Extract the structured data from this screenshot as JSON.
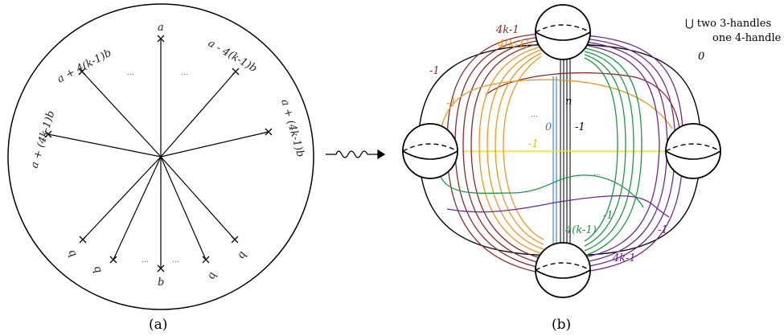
{
  "panel_a": {
    "caption": "(a)",
    "labels": {
      "top": "a",
      "upper_left": "a + 4(k-1)b",
      "upper_right": "a - 4(k-1)b",
      "left": "a + (4k-1)b",
      "right": "a + (4k-1)b",
      "bottom": "b",
      "b1": "b",
      "b2": "b",
      "b3": "b",
      "b4": "b",
      "dots": "..."
    }
  },
  "arrow": {
    "symbol": "squiggle-arrow"
  },
  "panel_b": {
    "caption": "(b)",
    "handles_note_line1": "⋃ two 3-handles",
    "handles_note_line2": "one 4-handle",
    "labels": {
      "zero_top": "0",
      "four_k_minus_1_brown": "4k-1",
      "four_k_minus_1_orange": "4(k-1)",
      "minus1_brown": "-1",
      "minus1_orange": "-1",
      "n": "n",
      "zero_blue": "0",
      "minus1_black": "-1",
      "minus1_yellow": "-1",
      "four_k_minus_1_green": "4(k-1)",
      "minus1_green": "-1",
      "minus1_purple": "-1",
      "four_k_minus_1_purple": "4k-1",
      "dots": "..."
    },
    "colors": {
      "brown": "#8b2a2a",
      "orange": "#f0961e",
      "green": "#1e9646",
      "purple": "#6e2896",
      "blue": "#3278c8",
      "yellow": "#f0e614",
      "black": "#111111"
    }
  }
}
